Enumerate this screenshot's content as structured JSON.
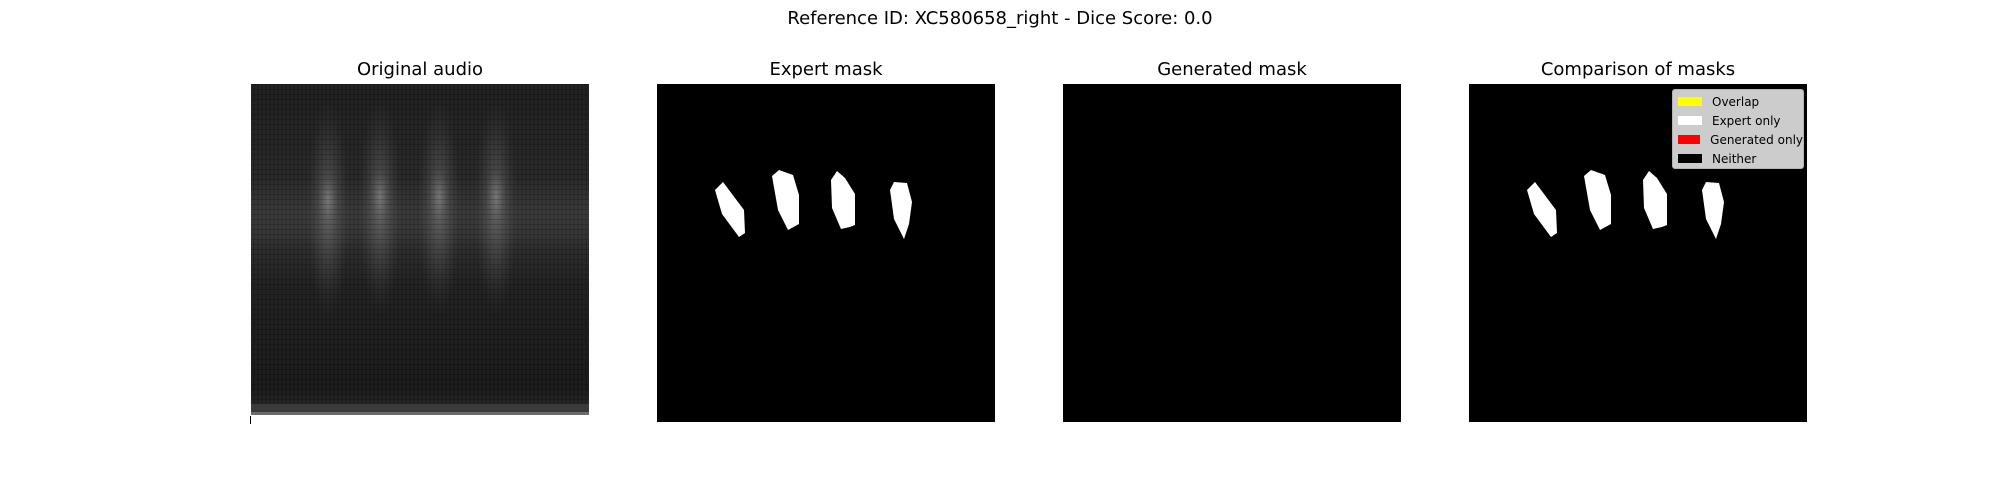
{
  "figure": {
    "suptitle": "Reference ID: XC580658_right - Dice Score: 0.0"
  },
  "panels": [
    {
      "title": "Original audio",
      "content": "spectrogram"
    },
    {
      "title": "Expert mask",
      "content": "mask"
    },
    {
      "title": "Generated mask",
      "content": "empty-mask"
    },
    {
      "title": "Comparison of masks",
      "content": "comparison"
    }
  ],
  "legend": {
    "items": [
      {
        "label": "Overlap",
        "color": "#ffff00"
      },
      {
        "label": "Expert only",
        "color": "#ffffff"
      },
      {
        "label": "Generated only",
        "color": "#ff0000"
      },
      {
        "label": "Neither",
        "color": "#000000"
      }
    ]
  }
}
